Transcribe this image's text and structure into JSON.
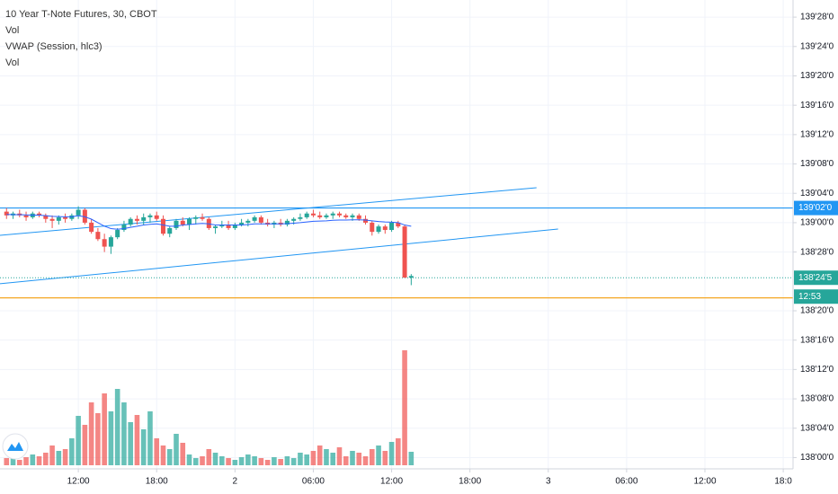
{
  "chart_data": {
    "type": "candlestick",
    "title": "10 Year T-Note Futures, 30, CBOT",
    "legend": [
      "Vol",
      "VWAP (Session, hlc3)",
      "Vol"
    ],
    "up_color": "#26a69a",
    "down_color": "#ef5350",
    "x": [
      1,
      2,
      3,
      4,
      5,
      6,
      7,
      8,
      9,
      10,
      11,
      12,
      13,
      14,
      15,
      16,
      17,
      18,
      19,
      20,
      21,
      22,
      23,
      24,
      25,
      26,
      27,
      28,
      29,
      30,
      31,
      32,
      33,
      34,
      35,
      36,
      37,
      38,
      39,
      40,
      41,
      42,
      43,
      44,
      45,
      46,
      47,
      48,
      49,
      50,
      51,
      52,
      53,
      54,
      55,
      56,
      57,
      58,
      59,
      60,
      61,
      62,
      63
    ],
    "candles": [
      [
        139.047,
        139.062,
        139.016,
        139.031
      ],
      [
        139.031,
        139.047,
        139.016,
        139.039
      ],
      [
        139.039,
        139.055,
        139.023,
        139.031
      ],
      [
        139.031,
        139.047,
        139.008,
        139.023
      ],
      [
        139.023,
        139.047,
        139.016,
        139.039
      ],
      [
        139.039,
        139.047,
        139.023,
        139.031
      ],
      [
        139.031,
        139.039,
        139.0,
        139.016
      ],
      [
        139.016,
        139.031,
        138.977,
        139.008
      ],
      [
        139.008,
        139.031,
        138.992,
        139.023
      ],
      [
        139.023,
        139.039,
        139.0,
        139.016
      ],
      [
        139.016,
        139.039,
        139.008,
        139.031
      ],
      [
        139.031,
        139.07,
        139.016,
        139.055
      ],
      [
        139.055,
        139.062,
        138.992,
        139.0
      ],
      [
        139.0,
        139.016,
        138.953,
        138.961
      ],
      [
        138.961,
        138.977,
        138.922,
        138.93
      ],
      [
        138.93,
        138.953,
        138.875,
        138.898
      ],
      [
        138.898,
        138.945,
        138.867,
        138.938
      ],
      [
        138.938,
        138.977,
        138.93,
        138.969
      ],
      [
        138.969,
        139.008,
        138.961,
        138.992
      ],
      [
        138.992,
        139.023,
        138.984,
        139.016
      ],
      [
        139.016,
        139.031,
        138.992,
        139.008
      ],
      [
        139.008,
        139.039,
        138.992,
        139.023
      ],
      [
        139.023,
        139.039,
        139.0,
        139.031
      ],
      [
        139.031,
        139.047,
        139.008,
        139.016
      ],
      [
        139.016,
        139.031,
        138.945,
        138.953
      ],
      [
        138.953,
        138.984,
        138.938,
        138.977
      ],
      [
        138.977,
        139.016,
        138.969,
        139.008
      ],
      [
        139.008,
        139.023,
        138.984,
        138.992
      ],
      [
        138.992,
        139.023,
        138.969,
        139.016
      ],
      [
        139.016,
        139.031,
        138.992,
        139.023
      ],
      [
        139.023,
        139.039,
        139.008,
        139.016
      ],
      [
        139.016,
        139.023,
        138.969,
        138.977
      ],
      [
        138.977,
        138.992,
        138.953,
        138.984
      ],
      [
        138.984,
        139.008,
        138.977,
        138.992
      ],
      [
        138.992,
        139.008,
        138.969,
        138.977
      ],
      [
        138.977,
        139.0,
        138.969,
        138.992
      ],
      [
        138.992,
        139.016,
        138.984,
        139.0
      ],
      [
        139.0,
        139.016,
        138.984,
        139.008
      ],
      [
        139.008,
        139.031,
        139.0,
        139.023
      ],
      [
        139.023,
        139.031,
        138.992,
        139.0
      ],
      [
        139.0,
        139.016,
        138.984,
        138.992
      ],
      [
        138.992,
        139.008,
        138.977,
        139.0
      ],
      [
        139.0,
        139.016,
        138.984,
        138.992
      ],
      [
        138.992,
        139.016,
        138.984,
        139.008
      ],
      [
        139.008,
        139.023,
        138.992,
        139.016
      ],
      [
        139.016,
        139.039,
        139.008,
        139.023
      ],
      [
        139.023,
        139.047,
        139.016,
        139.039
      ],
      [
        139.039,
        139.055,
        139.023,
        139.031
      ],
      [
        139.031,
        139.047,
        139.016,
        139.023
      ],
      [
        139.023,
        139.039,
        139.016,
        139.031
      ],
      [
        139.031,
        139.047,
        139.016,
        139.039
      ],
      [
        139.039,
        139.047,
        139.023,
        139.031
      ],
      [
        139.031,
        139.039,
        139.016,
        139.023
      ],
      [
        139.023,
        139.039,
        139.008,
        139.031
      ],
      [
        139.031,
        139.039,
        139.008,
        139.016
      ],
      [
        139.016,
        139.031,
        138.992,
        139.0
      ],
      [
        139.0,
        139.008,
        138.945,
        138.961
      ],
      [
        138.961,
        138.992,
        138.953,
        138.984
      ],
      [
        138.984,
        138.992,
        138.953,
        138.969
      ],
      [
        138.969,
        139.008,
        138.961,
        139.0
      ],
      [
        139.0,
        139.008,
        138.977,
        138.984
      ],
      [
        138.984,
        138.992,
        138.766,
        138.766
      ],
      [
        138.766,
        138.781,
        138.734,
        138.773
      ]
    ],
    "vwap": {
      "color": "#2962ff",
      "values": [
        139.035,
        139.034,
        139.034,
        139.033,
        139.032,
        139.032,
        139.03,
        139.027,
        139.026,
        139.025,
        139.025,
        139.03,
        139.025,
        139.015,
        139.0,
        138.985,
        138.975,
        138.972,
        138.975,
        138.98,
        138.985,
        138.99,
        138.993,
        138.995,
        138.99,
        138.985,
        138.985,
        138.99,
        138.992,
        138.995,
        138.997,
        138.995,
        138.99,
        138.99,
        138.99,
        138.99,
        138.99,
        138.992,
        138.995,
        138.995,
        138.995,
        138.995,
        138.995,
        138.996,
        138.998,
        139.0,
        139.003,
        139.006,
        139.007,
        139.008,
        139.01,
        139.011,
        139.011,
        139.012,
        139.012,
        139.011,
        139.008,
        139.005,
        139.003,
        139.002,
        139.0,
        138.99,
        138.985
      ]
    },
    "volume": {
      "vlim": [
        0,
        140
      ],
      "values": [
        8,
        10,
        6,
        9,
        12,
        10,
        14,
        22,
        16,
        18,
        30,
        55,
        45,
        70,
        58,
        80,
        60,
        85,
        70,
        48,
        56,
        40,
        60,
        30,
        22,
        18,
        35,
        25,
        12,
        8,
        10,
        18,
        14,
        10,
        8,
        6,
        9,
        12,
        10,
        8,
        6,
        9,
        7,
        10,
        8,
        14,
        12,
        16,
        22,
        18,
        14,
        20,
        10,
        16,
        14,
        10,
        18,
        22,
        16,
        26,
        30,
        128,
        15
      ]
    },
    "trend_lines": [
      {
        "color": "#2196f3",
        "x": [
          0,
          82.2
        ],
        "y": [
          138.946,
          139.149
        ]
      },
      {
        "color": "#2196f3",
        "x": [
          0,
          85.5
        ],
        "y": [
          138.74,
          138.973
        ]
      }
    ],
    "hlines": [
      {
        "value": 139.0625,
        "label": "139'02'0",
        "color": "#2196f3",
        "style": "solid"
      },
      {
        "value": 138.765625,
        "label": "138'24'5",
        "color": "#26a69a",
        "style": "dotted"
      },
      {
        "value": 138.68,
        "color": "#f5a623",
        "style": "solid"
      }
    ],
    "countdown": "12:53",
    "xlim": [
      0,
      121.5
    ],
    "xticks": [
      {
        "value": 12,
        "label": "12:00"
      },
      {
        "value": 24,
        "label": "18:00"
      },
      {
        "value": 36,
        "label": "2"
      },
      {
        "value": 48,
        "label": "06:00"
      },
      {
        "value": 60,
        "label": "12:00"
      },
      {
        "value": 72,
        "label": "18:00"
      },
      {
        "value": 84,
        "label": "3"
      },
      {
        "value": 96,
        "label": "06:00"
      },
      {
        "value": 108,
        "label": "12:00"
      },
      {
        "value": 120,
        "label": "18:0"
      }
    ],
    "ylim": [
      137.952,
      139.948
    ],
    "yticks": [
      {
        "value": 139.875,
        "label": "139'28'0"
      },
      {
        "value": 139.75,
        "label": "139'24'0"
      },
      {
        "value": 139.625,
        "label": "139'20'0"
      },
      {
        "value": 139.5,
        "label": "139'16'0"
      },
      {
        "value": 139.375,
        "label": "139'12'0"
      },
      {
        "value": 139.25,
        "label": "139'08'0"
      },
      {
        "value": 139.125,
        "label": "139'04'0"
      },
      {
        "value": 139.0,
        "label": "139'00'0"
      },
      {
        "value": 138.875,
        "label": "138'28'0"
      },
      {
        "value": 138.625,
        "label": "138'20'0"
      },
      {
        "value": 138.5,
        "label": "138'16'0"
      },
      {
        "value": 138.375,
        "label": "138'12'0"
      },
      {
        "value": 138.25,
        "label": "138'08'0"
      },
      {
        "value": 138.125,
        "label": "138'04'0"
      },
      {
        "value": 138.0,
        "label": "138'00'0"
      }
    ],
    "grid": true
  }
}
